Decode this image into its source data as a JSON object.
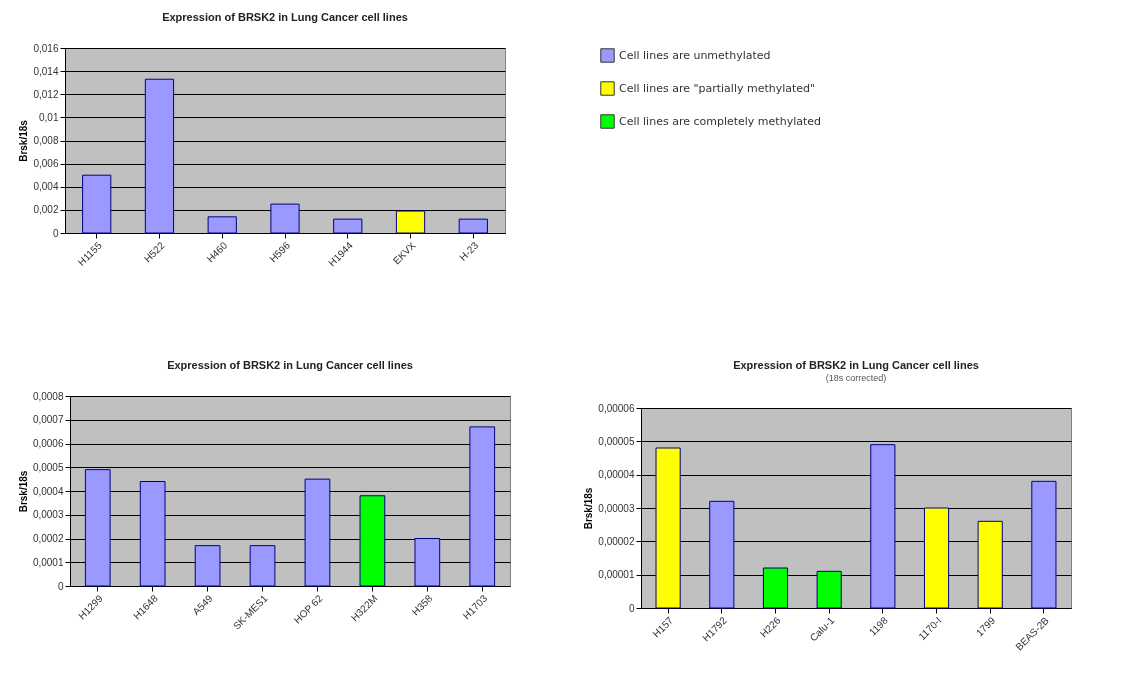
{
  "chart_data": [
    {
      "type": "bar",
      "title": "Expression of BRSK2  in Lung Cancer cell lines",
      "ylabel": "Brsk/18s",
      "categories": [
        "H1155",
        "H522",
        "H460",
        "H596",
        "H1944",
        "EKVX",
        "H-23"
      ],
      "grid": "y",
      "legend": "right",
      "ylim": [
        0,
        0.016
      ],
      "yticks": [
        {
          "value": 0,
          "label": "0"
        },
        {
          "value": 0.002,
          "label": "0,002"
        },
        {
          "value": 0.004,
          "label": "0,004"
        },
        {
          "value": 0.006,
          "label": "0,006"
        },
        {
          "value": 0.008,
          "label": "0,008"
        },
        {
          "value": 0.01,
          "label": "0,01"
        },
        {
          "value": 0.012,
          "label": "0,012"
        },
        {
          "value": 0.014,
          "label": "0,014"
        },
        {
          "value": 0.016,
          "label": "0,016"
        }
      ],
      "series": [
        {
          "name": "Cell lines are unmethylated",
          "color": "#9999ff",
          "values": [
            0.005,
            0.0133,
            0.0014,
            0.0025,
            0.0012,
            null,
            0.0012
          ]
        },
        {
          "name": "Cell lines are \"partially methylated\"",
          "color": "#ffff00",
          "values": [
            null,
            null,
            null,
            null,
            null,
            0.0019,
            null
          ]
        },
        {
          "name": "Cell lines are completely methylated",
          "color": "#00ff00",
          "values": [
            null,
            null,
            null,
            null,
            null,
            null,
            null
          ]
        }
      ]
    },
    {
      "type": "bar",
      "title": "Expression of BRSK2 in Lung Cancer cell lines",
      "ylabel": "Brsk/18s",
      "categories": [
        "H1299",
        "H1648",
        "A549",
        "SK-MES1",
        "HOP 62",
        "H322M",
        "H358",
        "H1703"
      ],
      "grid": "y",
      "ylim": [
        0,
        0.0008
      ],
      "yticks": [
        {
          "value": 0,
          "label": "0"
        },
        {
          "value": 0.0001,
          "label": "0,0001"
        },
        {
          "value": 0.0002,
          "label": "0,0002"
        },
        {
          "value": 0.0003,
          "label": "0,0003"
        },
        {
          "value": 0.0004,
          "label": "0,0004"
        },
        {
          "value": 0.0005,
          "label": "0,0005"
        },
        {
          "value": 0.0006,
          "label": "0,0006"
        },
        {
          "value": 0.0007,
          "label": "0,0007"
        },
        {
          "value": 0.0008,
          "label": "0,0008"
        }
      ],
      "series": [
        {
          "color": "#9999ff",
          "values": [
            0.00049,
            0.00044,
            0.00017,
            0.00017,
            0.00045,
            null,
            0.0002,
            0.00067
          ]
        },
        {
          "color": "#00ff00",
          "values": [
            null,
            null,
            null,
            null,
            null,
            0.00038,
            null,
            null
          ]
        }
      ]
    },
    {
      "type": "bar",
      "title": "Expression of BRSK2 in Lung Cancer cell lines",
      "subtitle": "(18s corrected)",
      "ylabel": "Brsk/18s",
      "categories": [
        "H157",
        "H1792",
        "H226",
        "Calu-1",
        "1198",
        "1170-I",
        "1799",
        "BEAS-2B"
      ],
      "grid": "y",
      "ylim": [
        0,
        6e-05
      ],
      "yticks": [
        {
          "value": 0,
          "label": "0"
        },
        {
          "value": 1e-05,
          "label": "0,00001"
        },
        {
          "value": 2e-05,
          "label": "0,00002"
        },
        {
          "value": 3e-05,
          "label": "0,00003"
        },
        {
          "value": 4e-05,
          "label": "0,00004"
        },
        {
          "value": 5e-05,
          "label": "0,00005"
        },
        {
          "value": 6e-05,
          "label": "0,00006"
        }
      ],
      "series": [
        {
          "color": "#9999ff",
          "values": [
            null,
            3.2e-05,
            null,
            null,
            4.9e-05,
            null,
            null,
            3.8e-05
          ]
        },
        {
          "color": "#ffff00",
          "values": [
            4.8e-05,
            null,
            null,
            null,
            null,
            3e-05,
            2.6e-05,
            null
          ]
        },
        {
          "color": "#00ff00",
          "values": [
            null,
            null,
            1.2e-05,
            1.1e-05,
            null,
            null,
            null,
            null
          ]
        }
      ]
    }
  ]
}
